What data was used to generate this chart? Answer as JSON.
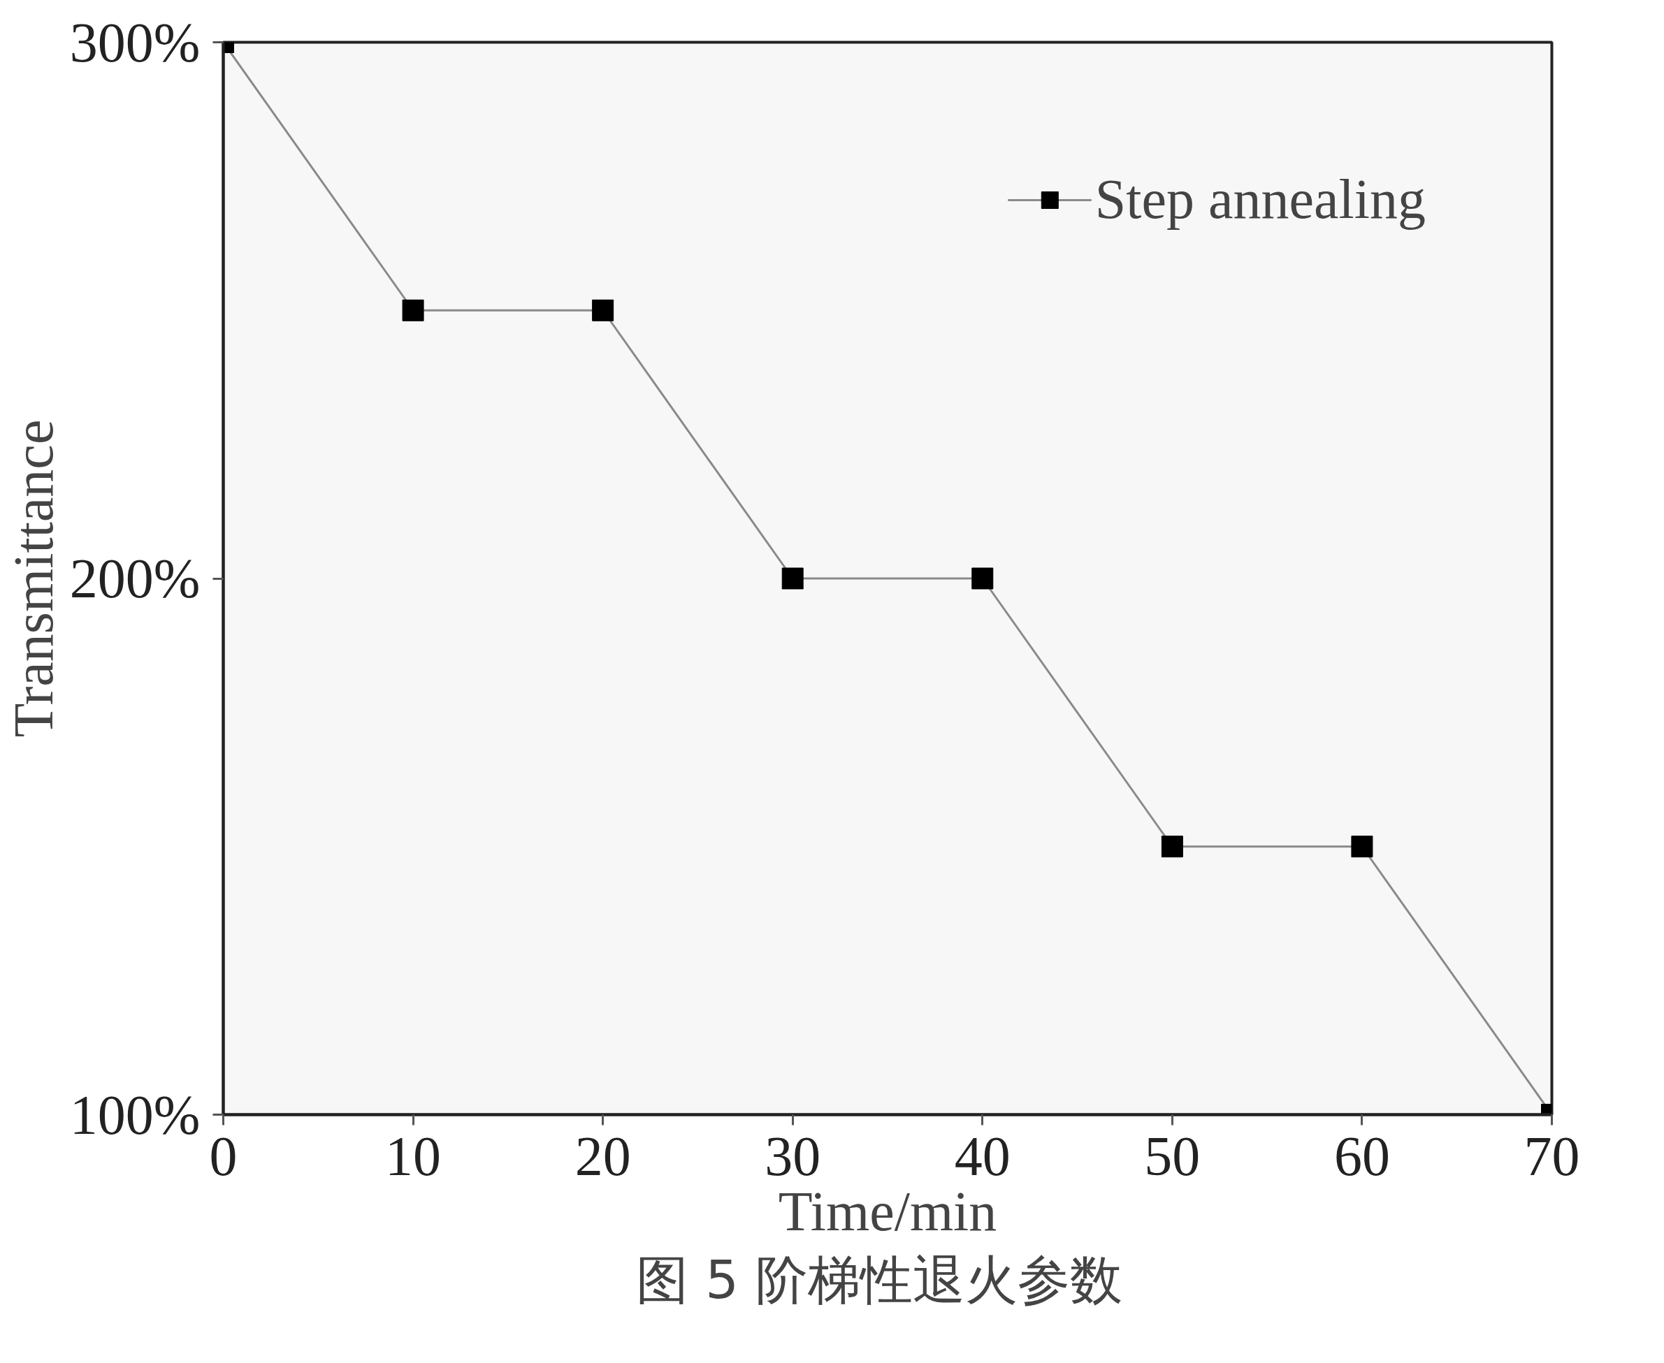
{
  "chart_data": {
    "type": "line",
    "xlabel": "Time/min",
    "ylabel": "Transmittance",
    "x": [
      0,
      10,
      20,
      30,
      40,
      50,
      60,
      70
    ],
    "series": [
      {
        "name": "Step annealing",
        "color": "#000000",
        "values": [
          300,
          250,
          250,
          200,
          200,
          150,
          150,
          100
        ]
      }
    ],
    "xlim": [
      0,
      70
    ],
    "xticks": [
      0,
      10,
      20,
      30,
      40,
      50,
      60,
      70
    ],
    "ylim": [
      100,
      300
    ],
    "yticks": [
      {
        "value": 100,
        "label": "100%"
      },
      {
        "value": 200,
        "label": "200%"
      },
      {
        "value": 300,
        "label": "300%"
      }
    ],
    "marker": "square",
    "line_style": "solid",
    "grid": false,
    "legend": "top right",
    "annotations": [
      "图 5  阶梯性退火参数"
    ]
  }
}
